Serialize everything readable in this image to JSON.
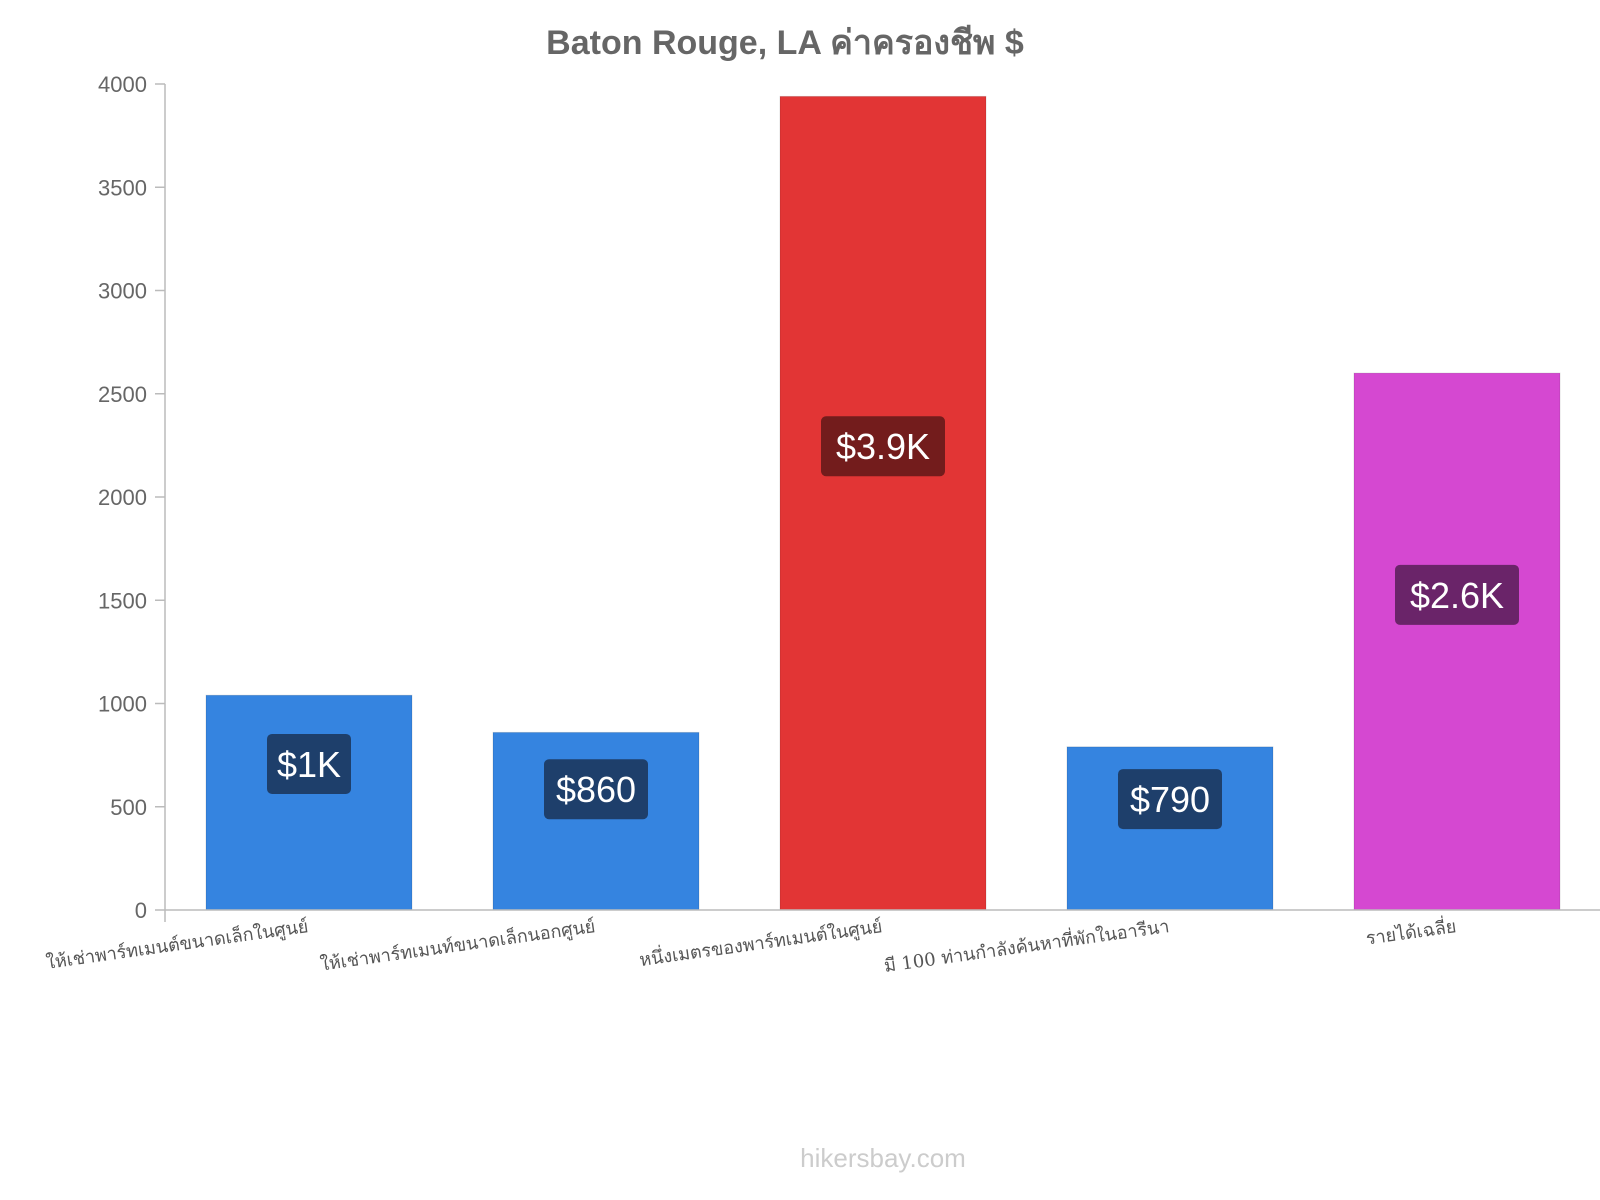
{
  "chart_data": {
    "type": "bar",
    "title": "Baton Rouge, LA ค่าครองชีพ $",
    "categories": [
      "ให้เช่าพาร์ทเมนต์ขนาดเล็กในศูนย์",
      "ให้เช่าพาร์ทเมนท์ขนาดเล็กนอกศูนย์",
      "หนึ่งเมตรของพาร์ทเมนต์ในศูนย์",
      "มี 100 ท่านกำลังค้นหาที่พักในอารีนา",
      "รายได้เฉลี่ย"
    ],
    "values": [
      1040,
      860,
      3940,
      790,
      2600
    ],
    "value_labels": [
      "$1K",
      "$860",
      "$3.9K",
      "$790",
      "$2.6K"
    ],
    "bar_colors": [
      "#3584e0",
      "#3584e0",
      "#e23535",
      "#3584e0",
      "#d548d1"
    ],
    "label_bg_colors": [
      "#1e3f6b",
      "#1e3f6b",
      "#731c1c",
      "#1e3f6b",
      "#6a2469"
    ],
    "ylim": [
      0,
      4000
    ],
    "yticks": [
      0,
      500,
      1000,
      1500,
      2000,
      2500,
      3000,
      3500,
      4000
    ],
    "grid": false,
    "xlabel": "",
    "ylabel": ""
  },
  "footer": "hikersbay.com"
}
